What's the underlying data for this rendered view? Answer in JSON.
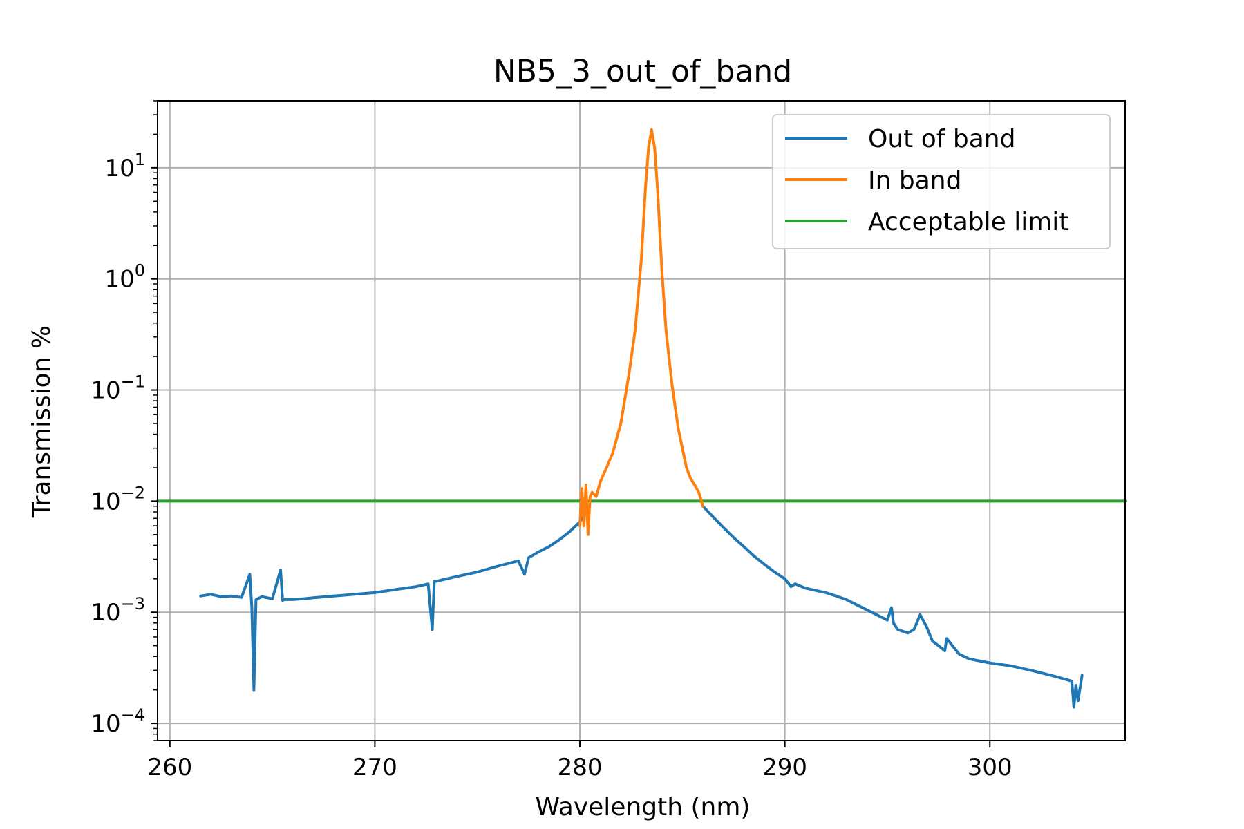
{
  "chart_data": {
    "type": "line",
    "title": "NB5_3_out_of_band",
    "xlabel": "Wavelength (nm)",
    "ylabel": "Transmission %",
    "xlim": [
      259.4,
      306.6
    ],
    "ylim": [
      7e-05,
      40
    ],
    "yscale": "log",
    "grid": true,
    "legend_position": "top-right",
    "x_ticks": [
      260,
      270,
      280,
      290,
      300
    ],
    "y_ticks": [
      {
        "value": 0.0001,
        "base": "10",
        "exp": "−4"
      },
      {
        "value": 0.001,
        "base": "10",
        "exp": "−3"
      },
      {
        "value": 0.01,
        "base": "10",
        "exp": "−2"
      },
      {
        "value": 0.1,
        "base": "10",
        "exp": "−1"
      },
      {
        "value": 1,
        "base": "10",
        "exp": "0"
      },
      {
        "value": 10,
        "base": "10",
        "exp": "1"
      }
    ],
    "series": [
      {
        "name": "Out of band",
        "color": "#1f77b4",
        "x": [
          261.5,
          262.0,
          262.5,
          263.0,
          263.5,
          263.9,
          264.0,
          264.1,
          264.2,
          264.5,
          265.0,
          265.4,
          265.5,
          265.6,
          266.0,
          266.5,
          267.0,
          268.0,
          269.0,
          270.0,
          271.0,
          272.0,
          272.6,
          272.8,
          272.9,
          273.0,
          274.0,
          275.0,
          276.0,
          277.0,
          277.3,
          277.5,
          278.0,
          278.5,
          279.0,
          279.5,
          280.0,
          280.2
        ],
        "y": [
          0.0014,
          0.00145,
          0.00138,
          0.0014,
          0.00136,
          0.0022,
          0.0011,
          0.0002,
          0.0013,
          0.00138,
          0.00132,
          0.0024,
          0.00128,
          0.0013,
          0.0013,
          0.00132,
          0.00135,
          0.0014,
          0.00145,
          0.0015,
          0.0016,
          0.0017,
          0.0018,
          0.0007,
          0.0019,
          0.0019,
          0.0021,
          0.0023,
          0.0026,
          0.0029,
          0.0022,
          0.0031,
          0.0035,
          0.0039,
          0.0045,
          0.0053,
          0.0065,
          0.0075
        ]
      },
      {
        "name": "Out of band (right)",
        "color": "#1f77b4",
        "x": [
          286.0,
          286.5,
          287.0,
          287.5,
          288.0,
          288.5,
          289.0,
          289.5,
          290.0,
          290.3,
          290.5,
          291.0,
          292.0,
          292.5,
          293.0,
          294.0,
          295.0,
          295.2,
          295.3,
          295.5,
          296.0,
          296.3,
          296.6,
          296.9,
          297.2,
          297.5,
          297.8,
          297.9,
          298.5,
          299.0,
          300.0,
          301.0,
          302.0,
          303.0,
          304.0,
          304.1,
          304.2,
          304.3,
          304.5
        ],
        "y": [
          0.009,
          0.0072,
          0.0058,
          0.0047,
          0.0039,
          0.0032,
          0.0027,
          0.0023,
          0.002,
          0.0017,
          0.0018,
          0.00165,
          0.0015,
          0.0014,
          0.0013,
          0.00105,
          0.00085,
          0.0011,
          0.0008,
          0.0007,
          0.00065,
          0.0007,
          0.00095,
          0.00075,
          0.00055,
          0.0005,
          0.00045,
          0.00058,
          0.00042,
          0.00038,
          0.00035,
          0.00033,
          0.0003,
          0.00027,
          0.00024,
          0.00014,
          0.00022,
          0.00016,
          0.00027
        ]
      },
      {
        "name": "In band",
        "color": "#ff7f0e",
        "x": [
          280.0,
          280.1,
          280.2,
          280.3,
          280.4,
          280.5,
          280.6,
          280.8,
          281.0,
          281.3,
          281.6,
          282.0,
          282.4,
          282.7,
          283.0,
          283.2,
          283.35,
          283.5,
          283.65,
          283.8,
          284.0,
          284.2,
          284.5,
          284.8,
          285.0,
          285.2,
          285.4,
          285.6,
          285.8,
          286.0
        ],
        "y": [
          0.006,
          0.013,
          0.006,
          0.014,
          0.005,
          0.011,
          0.012,
          0.011,
          0.015,
          0.02,
          0.027,
          0.05,
          0.14,
          0.35,
          1.5,
          6.5,
          15.0,
          22.0,
          15.0,
          6.0,
          1.2,
          0.35,
          0.11,
          0.045,
          0.03,
          0.02,
          0.016,
          0.014,
          0.012,
          0.009
        ]
      },
      {
        "name": "Acceptable limit",
        "color": "#2ca02c",
        "x": [
          259.4,
          306.6
        ],
        "y": [
          0.01,
          0.01
        ]
      }
    ],
    "legend": [
      {
        "label": "Out of band",
        "color": "#1f77b4"
      },
      {
        "label": "In band",
        "color": "#ff7f0e"
      },
      {
        "label": "Acceptable limit",
        "color": "#2ca02c"
      }
    ]
  }
}
